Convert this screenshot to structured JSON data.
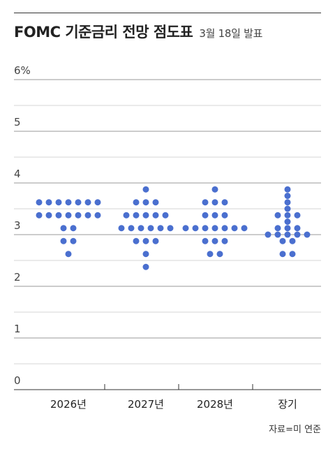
{
  "header": {
    "title": "FOMC 기준금리 전망 점도표",
    "subtitle": "3월 18일 발표"
  },
  "footer": {
    "source": "자료=미 연준"
  },
  "colors": {
    "dot": "#4a6fcf",
    "grid_major": "#9a9a9a",
    "grid_minor": "#d6d6d6",
    "axis": "#333333"
  },
  "chart_data": {
    "type": "scatter",
    "title": "FOMC 기준금리 전망 점도표",
    "subtitle": "3월 18일 발표",
    "categories": [
      "2026년",
      "2027년",
      "2028년",
      "장기"
    ],
    "y_tick_labels": [
      "0",
      "1",
      "2",
      "3",
      "4",
      "5",
      "6%"
    ],
    "ylim": [
      0,
      6
    ],
    "grid": true,
    "rows": [
      {
        "category": "2026년",
        "rate": 3.625,
        "count": 7
      },
      {
        "category": "2026년",
        "rate": 3.375,
        "count": 7
      },
      {
        "category": "2026년",
        "rate": 3.125,
        "count": 2
      },
      {
        "category": "2026년",
        "rate": 2.875,
        "count": 2
      },
      {
        "category": "2026년",
        "rate": 2.625,
        "count": 1
      },
      {
        "category": "2027년",
        "rate": 3.875,
        "count": 1
      },
      {
        "category": "2027년",
        "rate": 3.625,
        "count": 3
      },
      {
        "category": "2027년",
        "rate": 3.375,
        "count": 5
      },
      {
        "category": "2027년",
        "rate": 3.125,
        "count": 6
      },
      {
        "category": "2027년",
        "rate": 2.875,
        "count": 3
      },
      {
        "category": "2027년",
        "rate": 2.625,
        "count": 1
      },
      {
        "category": "2027년",
        "rate": 2.375,
        "count": 1
      },
      {
        "category": "2028년",
        "rate": 3.875,
        "count": 1
      },
      {
        "category": "2028년",
        "rate": 3.625,
        "count": 3
      },
      {
        "category": "2028년",
        "rate": 3.375,
        "count": 3
      },
      {
        "category": "2028년",
        "rate": 3.125,
        "count": 7
      },
      {
        "category": "2028년",
        "rate": 2.875,
        "count": 3
      },
      {
        "category": "2028년",
        "rate": 2.625,
        "count": 2
      },
      {
        "category": "장기",
        "rate": 3.875,
        "count": 1
      },
      {
        "category": "장기",
        "rate": 3.75,
        "count": 1
      },
      {
        "category": "장기",
        "rate": 3.625,
        "count": 1
      },
      {
        "category": "장기",
        "rate": 3.5,
        "count": 1
      },
      {
        "category": "장기",
        "rate": 3.375,
        "count": 3
      },
      {
        "category": "장기",
        "rate": 3.25,
        "count": 1
      },
      {
        "category": "장기",
        "rate": 3.125,
        "count": 3
      },
      {
        "category": "장기",
        "rate": 3.0,
        "count": 5
      },
      {
        "category": "장기",
        "rate": 2.875,
        "count": 2
      },
      {
        "category": "장기",
        "rate": 2.625,
        "count": 2
      }
    ]
  }
}
